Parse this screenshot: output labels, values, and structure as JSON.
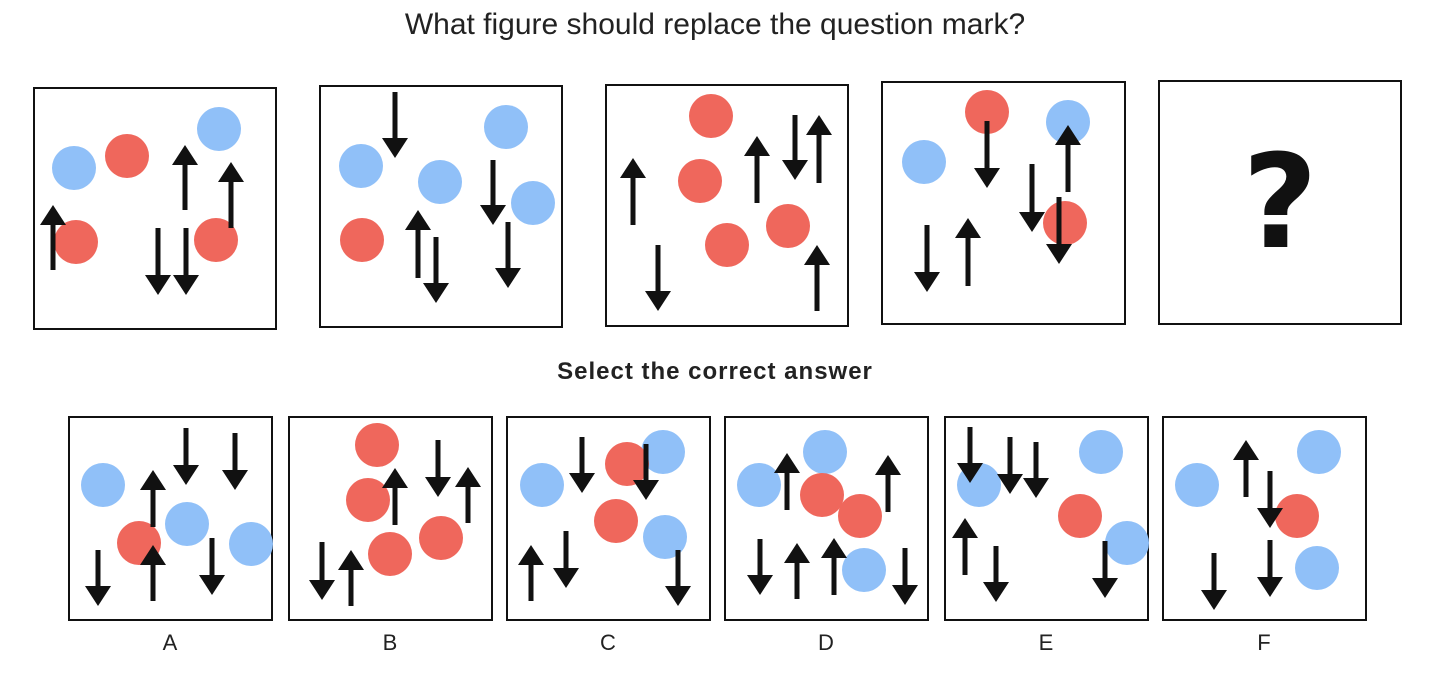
{
  "question": "What figure should replace the question mark?",
  "instruction": "Select the correct answer",
  "colors": {
    "red": "#ef675c",
    "blue": "#90c0f8",
    "arrow": "#111111",
    "border": "#111111"
  },
  "sequence": [
    {
      "circles": [
        [
          "b",
          74,
          168
        ],
        [
          "r",
          127,
          156
        ],
        [
          "b",
          219,
          129
        ],
        [
          "r",
          76,
          242
        ],
        [
          "r",
          216,
          240
        ]
      ],
      "arrows": [
        [
          "u",
          53,
          205,
          270
        ],
        [
          "u",
          185,
          145,
          210
        ],
        [
          "u",
          231,
          162,
          228
        ],
        [
          "d",
          158,
          228,
          295
        ],
        [
          "d",
          186,
          228,
          295
        ]
      ]
    },
    {
      "circles": [
        [
          "b",
          361,
          166
        ],
        [
          "b",
          506,
          127
        ],
        [
          "b",
          440,
          182
        ],
        [
          "b",
          533,
          203
        ],
        [
          "r",
          362,
          240
        ]
      ],
      "arrows": [
        [
          "d",
          395,
          92,
          158
        ],
        [
          "d",
          493,
          160,
          225
        ],
        [
          "u",
          418,
          210,
          278
        ],
        [
          "d",
          436,
          237,
          303
        ],
        [
          "d",
          508,
          222,
          288
        ]
      ]
    },
    {
      "circles": [
        [
          "r",
          711,
          116
        ],
        [
          "r",
          700,
          181
        ],
        [
          "r",
          788,
          226
        ],
        [
          "r",
          727,
          245
        ]
      ],
      "arrows": [
        [
          "u",
          633,
          158,
          225
        ],
        [
          "u",
          757,
          136,
          203
        ],
        [
          "d",
          795,
          115,
          180
        ],
        [
          "u",
          819,
          115,
          183
        ],
        [
          "d",
          658,
          245,
          311
        ],
        [
          "u",
          817,
          245,
          311
        ]
      ]
    },
    {
      "circles": [
        [
          "b",
          924,
          162
        ],
        [
          "r",
          987,
          112
        ],
        [
          "b",
          1068,
          122
        ],
        [
          "r",
          1065,
          223
        ]
      ],
      "arrows": [
        [
          "d",
          987,
          121,
          188
        ],
        [
          "u",
          1068,
          125,
          192
        ],
        [
          "d",
          1032,
          164,
          232
        ],
        [
          "d",
          1059,
          197,
          264
        ],
        [
          "d",
          927,
          225,
          292
        ],
        [
          "u",
          968,
          218,
          286
        ]
      ]
    }
  ],
  "missing_symbol": "?",
  "options": [
    {
      "label": "A",
      "circles": [
        [
          "b",
          103,
          485
        ],
        [
          "b",
          187,
          524
        ],
        [
          "r",
          139,
          543
        ],
        [
          "b",
          251,
          544
        ]
      ],
      "arrows": [
        [
          "d",
          186,
          428,
          485
        ],
        [
          "d",
          235,
          433,
          490
        ],
        [
          "u",
          153,
          470,
          527
        ],
        [
          "u",
          153,
          545,
          601
        ],
        [
          "d",
          98,
          550,
          606
        ],
        [
          "d",
          212,
          538,
          595
        ]
      ]
    },
    {
      "label": "B",
      "circles": [
        [
          "r",
          377,
          445
        ],
        [
          "r",
          368,
          500
        ],
        [
          "r",
          390,
          554
        ],
        [
          "r",
          441,
          538
        ]
      ],
      "arrows": [
        [
          "d",
          438,
          440,
          497
        ],
        [
          "u",
          395,
          468,
          525
        ],
        [
          "u",
          468,
          467,
          523
        ],
        [
          "d",
          322,
          542,
          600
        ],
        [
          "u",
          351,
          550,
          606
        ]
      ]
    },
    {
      "label": "C",
      "circles": [
        [
          "b",
          542,
          485
        ],
        [
          "b",
          663,
          452
        ],
        [
          "r",
          627,
          464
        ],
        [
          "r",
          616,
          521
        ],
        [
          "b",
          665,
          537
        ]
      ],
      "arrows": [
        [
          "d",
          582,
          437,
          493
        ],
        [
          "d",
          646,
          444,
          500
        ],
        [
          "u",
          531,
          545,
          601
        ],
        [
          "d",
          566,
          531,
          588
        ],
        [
          "d",
          678,
          550,
          606
        ]
      ]
    },
    {
      "label": "D",
      "circles": [
        [
          "b",
          759,
          485
        ],
        [
          "b",
          825,
          452
        ],
        [
          "r",
          822,
          495
        ],
        [
          "r",
          860,
          516
        ],
        [
          "b",
          864,
          570
        ]
      ],
      "arrows": [
        [
          "u",
          787,
          453,
          510
        ],
        [
          "u",
          888,
          455,
          512
        ],
        [
          "d",
          760,
          539,
          595
        ],
        [
          "u",
          797,
          543,
          599
        ],
        [
          "u",
          834,
          538,
          595
        ],
        [
          "d",
          905,
          548,
          605
        ]
      ]
    },
    {
      "label": "E",
      "circles": [
        [
          "b",
          979,
          485
        ],
        [
          "b",
          1101,
          452
        ],
        [
          "r",
          1080,
          516
        ],
        [
          "b",
          1127,
          543
        ]
      ],
      "arrows": [
        [
          "d",
          970,
          427,
          483
        ],
        [
          "d",
          1010,
          437,
          494
        ],
        [
          "d",
          1036,
          442,
          498
        ],
        [
          "u",
          965,
          518,
          575
        ],
        [
          "d",
          996,
          546,
          602
        ],
        [
          "d",
          1105,
          541,
          598
        ]
      ]
    },
    {
      "label": "F",
      "circles": [
        [
          "b",
          1197,
          485
        ],
        [
          "b",
          1319,
          452
        ],
        [
          "r",
          1297,
          516
        ],
        [
          "b",
          1317,
          568
        ]
      ],
      "arrows": [
        [
          "u",
          1246,
          440,
          497
        ],
        [
          "d",
          1270,
          471,
          528
        ],
        [
          "d",
          1270,
          540,
          597
        ],
        [
          "d",
          1214,
          553,
          610
        ]
      ]
    }
  ]
}
